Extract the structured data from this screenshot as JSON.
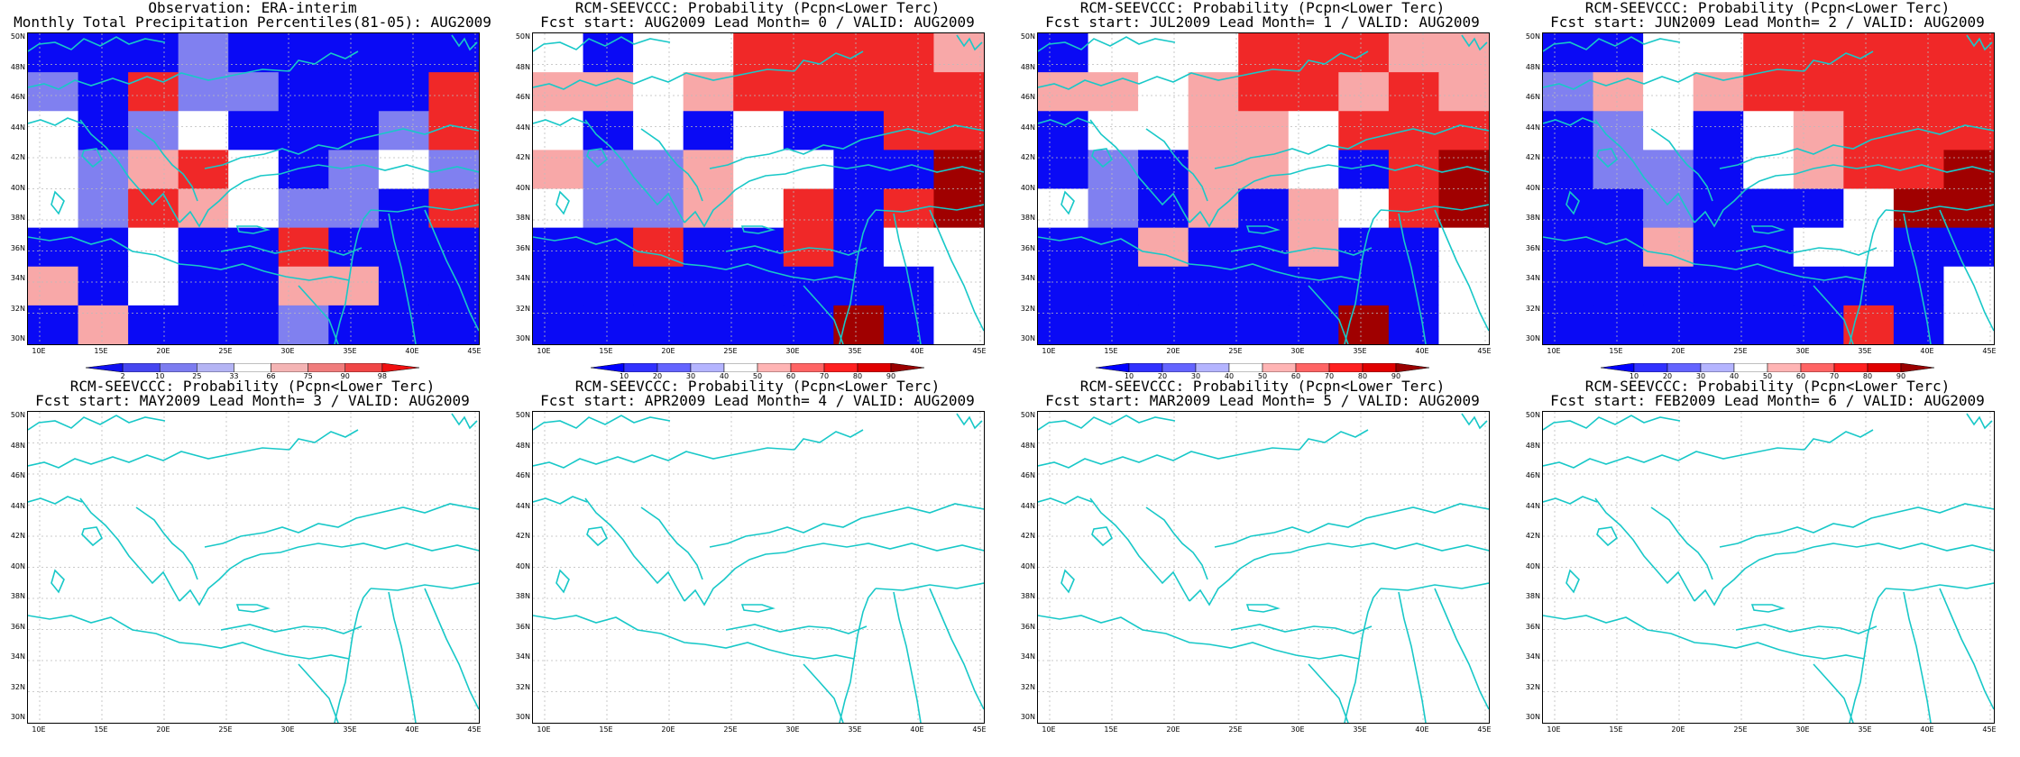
{
  "panels": [
    {
      "title1": "Observation: ERA-interim",
      "title2": "Monthly Total Precipitation Percentiles(81-05): AUG2009",
      "colorbar": "obs",
      "grid": [
        "BBBLBBBBB",
        "LBRLLBBBR",
        "WBLWBBBLR",
        "WLPRWBLWL",
        "WLRPWLLBR",
        "BBWBBRBBB",
        "PBWBBPPBB",
        "BPBBBLBBB"
      ]
    },
    {
      "title1": "RCM-SEEVCCC: Probability (Pcpn<Lower Terc)",
      "title2": "Fcst start: AUG2009  Lead Month= 0 / VALID: AUG2009",
      "colorbar": "fcst",
      "grid": [
        "WBWWRRRRP",
        "PPWPRRRRR",
        "WBWBWBBRR",
        "PLLPWWBBD",
        "WLLPWRBRD",
        "BBRBBRBWW",
        "BBBBBBBBW",
        "BBBBBBDBW"
      ]
    },
    {
      "title1": "RCM-SEEVCCC: Probability (Pcpn<Lower Terc)",
      "title2": "Fcst start: JUL2009  Lead Month= 1 / VALID: AUG2009",
      "colorbar": "fcst",
      "grid": [
        "BWWWRRRPP",
        "PPWPRRPRP",
        "BWWPPWRRR",
        "BLBPPWBRD",
        "WLBPBPWRD",
        "BBPBBPBBW",
        "BBBBBBBBW",
        "BBBBBBDBW"
      ]
    },
    {
      "title1": "RCM-SEEVCCC: Probability (Pcpn<Lower Terc)",
      "title2": "Fcst start: JUN2009  Lead Month= 2 / VALID: AUG2009",
      "colorbar": "fcst",
      "grid": [
        "BBWWRRRRR",
        "LPWPRRRRR",
        "BLWBWPRRR",
        "BLLBWPRRD",
        "BBLBBBWDD",
        "BBPBBWWBB",
        "BBBBBBBBW",
        "BBBBBBRBW"
      ]
    },
    {
      "title1": "RCM-SEEVCCC: Probability (Pcpn<Lower Terc)",
      "title2": "Fcst start: MAY2009  Lead Month= 3 / VALID: AUG2009",
      "colorbar": "none",
      "grid": []
    },
    {
      "title1": "RCM-SEEVCCC: Probability (Pcpn<Lower Terc)",
      "title2": "Fcst start: APR2009  Lead Month= 4 / VALID: AUG2009",
      "colorbar": "none",
      "grid": []
    },
    {
      "title1": "RCM-SEEVCCC: Probability (Pcpn<Lower Terc)",
      "title2": "Fcst start: MAR2009  Lead Month= 5 / VALID: AUG2009",
      "colorbar": "none",
      "grid": []
    },
    {
      "title1": "RCM-SEEVCCC: Probability (Pcpn<Lower Terc)",
      "title2": "Fcst start: FEB2009  Lead Month= 6 / VALID: AUG2009",
      "colorbar": "none",
      "grid": []
    }
  ],
  "axes": {
    "lat_labels": [
      "50N",
      "48N",
      "46N",
      "44N",
      "42N",
      "40N",
      "38N",
      "36N",
      "34N",
      "32N",
      "30N"
    ],
    "lon_labels": [
      "10E",
      "15E",
      "20E",
      "25E",
      "30E",
      "35E",
      "40E",
      "45E"
    ]
  },
  "colorbars": {
    "obs": {
      "labels": [
        "2",
        "10",
        "25",
        "33",
        "66",
        "75",
        "90",
        "98"
      ],
      "colors": [
        "#1010f0",
        "#4646f0",
        "#7c7cf0",
        "#b4b4f4",
        "#ffffff",
        "#f4b4b4",
        "#f07c7c",
        "#f04646",
        "#f01010"
      ]
    },
    "fcst": {
      "labels": [
        "10",
        "20",
        "30",
        "40",
        "50",
        "60",
        "70",
        "80",
        "90"
      ],
      "colors": [
        "#0000ff",
        "#3232ff",
        "#6464ff",
        "#b4b4ff",
        "#ffffff",
        "#ffb4b4",
        "#ff6464",
        "#ff2020",
        "#e00000",
        "#9a0000"
      ]
    }
  },
  "palette": {
    "B": "#0a0af5",
    "L": "#8080f0",
    "W": "#ffffff",
    "P": "#f8a8a8",
    "R": "#f02828",
    "D": "#a00000",
    "coast": "#18c8c8"
  }
}
